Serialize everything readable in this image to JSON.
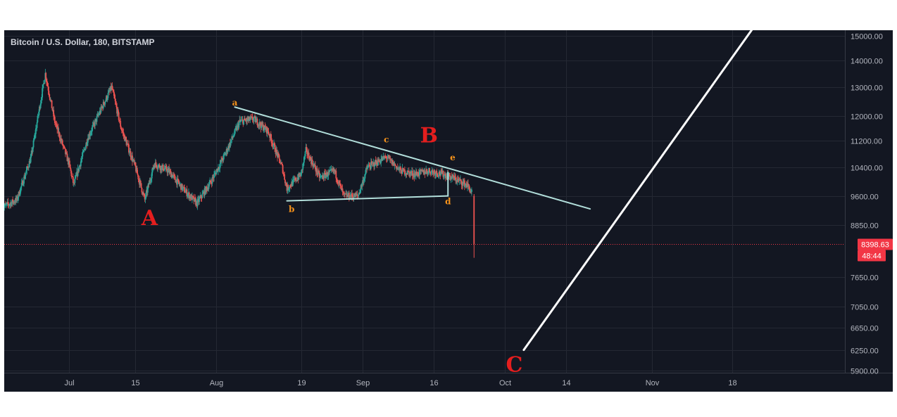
{
  "chart_title": "Bitcoin / U.S. Dollar, 180, BITSTAMP",
  "colors": {
    "background": "#131722",
    "up": "#26a69a",
    "down": "#ef5350",
    "trendline": "#b2dfdb",
    "projection": "#ffffff",
    "wave_small": "#f7931a",
    "wave_big": "#e41e1e",
    "price_tag": "#f23645"
  },
  "current_price_label": "8398.63",
  "countdown_label": "48:44",
  "chart_data": {
    "type": "candlestick",
    "symbol": "Bitcoin / U.S. Dollar",
    "interval": "180",
    "exchange": "BITSTAMP",
    "y_scale": "log",
    "ylim": [
      5800,
      15500
    ],
    "x_range": [
      "2019-06-17",
      "2019-11-30"
    ],
    "y_ticks": [
      "15000.00",
      "14000.00",
      "13000.00",
      "12000.00",
      "11200.00",
      "10400.00",
      "9600.00",
      "8850.00",
      "7650.00",
      "7050.00",
      "6650.00",
      "6250.00",
      "5900.00"
    ],
    "y_tick_values": [
      15000,
      14000,
      13000,
      12000,
      11200,
      10400,
      9600,
      8850,
      7650,
      7050,
      6650,
      6250,
      5900
    ],
    "x_ticks": [
      {
        "label": "Jul",
        "date": "2019-07-01"
      },
      {
        "label": "15",
        "date": "2019-07-15"
      },
      {
        "label": "Aug",
        "date": "2019-08-01"
      },
      {
        "label": "19",
        "date": "2019-08-19"
      },
      {
        "label": "Sep",
        "date": "2019-09-01"
      },
      {
        "label": "16",
        "date": "2019-09-16"
      },
      {
        "label": "Oct",
        "date": "2019-10-01"
      },
      {
        "label": "14",
        "date": "2019-10-14"
      },
      {
        "label": "Nov",
        "date": "2019-11-01"
      },
      {
        "label": "18",
        "date": "2019-11-18"
      }
    ],
    "price_path": [
      {
        "date": "2019-06-17",
        "price": 9300
      },
      {
        "date": "2019-06-20",
        "price": 9500
      },
      {
        "date": "2019-06-23",
        "price": 10700
      },
      {
        "date": "2019-06-26",
        "price": 13500
      },
      {
        "date": "2019-06-28",
        "price": 11800
      },
      {
        "date": "2019-07-01",
        "price": 10500
      },
      {
        "date": "2019-07-02",
        "price": 9900
      },
      {
        "date": "2019-07-05",
        "price": 11300
      },
      {
        "date": "2019-07-08",
        "price": 12300
      },
      {
        "date": "2019-07-10",
        "price": 13000
      },
      {
        "date": "2019-07-12",
        "price": 11600
      },
      {
        "date": "2019-07-15",
        "price": 10400
      },
      {
        "date": "2019-07-17",
        "price": 9500
      },
      {
        "date": "2019-07-19",
        "price": 10500
      },
      {
        "date": "2019-07-22",
        "price": 10300
      },
      {
        "date": "2019-07-25",
        "price": 9800
      },
      {
        "date": "2019-07-28",
        "price": 9400
      },
      {
        "date": "2019-07-31",
        "price": 10000
      },
      {
        "date": "2019-08-03",
        "price": 10800
      },
      {
        "date": "2019-08-06",
        "price": 11800
      },
      {
        "date": "2019-08-09",
        "price": 11900
      },
      {
        "date": "2019-08-12",
        "price": 11500
      },
      {
        "date": "2019-08-15",
        "price": 10400
      },
      {
        "date": "2019-08-16",
        "price": 9800
      },
      {
        "date": "2019-08-19",
        "price": 10200
      },
      {
        "date": "2019-08-20",
        "price": 10900
      },
      {
        "date": "2019-08-23",
        "price": 10100
      },
      {
        "date": "2019-08-26",
        "price": 10300
      },
      {
        "date": "2019-08-28",
        "price": 9600
      },
      {
        "date": "2019-08-31",
        "price": 9600
      },
      {
        "date": "2019-09-02",
        "price": 10400
      },
      {
        "date": "2019-09-06",
        "price": 10700
      },
      {
        "date": "2019-09-09",
        "price": 10300
      },
      {
        "date": "2019-09-12",
        "price": 10200
      },
      {
        "date": "2019-09-15",
        "price": 10300
      },
      {
        "date": "2019-09-18",
        "price": 10200
      },
      {
        "date": "2019-09-20",
        "price": 10100
      },
      {
        "date": "2019-09-23",
        "price": 9900
      },
      {
        "date": "2019-09-24",
        "price": 9700
      },
      {
        "date": "2019-09-24T12:00",
        "price": 8398.63
      }
    ],
    "last_price": 8398.63,
    "wave_labels": [
      {
        "text": "A",
        "size": "large",
        "date": "2019-07-18",
        "price": 8850
      },
      {
        "text": "a",
        "size": "small",
        "date": "2019-08-05",
        "price": 12350
      },
      {
        "text": "b",
        "size": "small",
        "date": "2019-08-17",
        "price": 9180
      },
      {
        "text": "c",
        "size": "small",
        "date": "2019-09-06",
        "price": 11150
      },
      {
        "text": "B",
        "size": "large",
        "date": "2019-09-15",
        "price": 11150
      },
      {
        "text": "e",
        "size": "small",
        "date": "2019-09-20",
        "price": 10600
      },
      {
        "text": "d",
        "size": "small",
        "date": "2019-09-19",
        "price": 9380
      },
      {
        "text": "C",
        "size": "large",
        "date": "2019-10-03",
        "price": 5880
      }
    ],
    "trendlines": [
      {
        "name": "upper",
        "from": {
          "date": "2019-08-05",
          "price": 12300
        },
        "to": {
          "date": "2019-10-19",
          "price": 9260
        }
      },
      {
        "name": "lower",
        "from": {
          "date": "2019-08-16",
          "price": 9470
        },
        "to": {
          "date": "2019-09-19",
          "price": 9600
        }
      },
      {
        "name": "d-e",
        "from": {
          "date": "2019-09-19",
          "price": 9600
        },
        "to": {
          "date": "2019-09-19",
          "price": 10250
        }
      },
      {
        "name": "projection",
        "from": {
          "date": "2019-10-05",
          "price": 6250
        },
        "to": {
          "date": "2019-11-23",
          "price": 15500
        }
      }
    ]
  }
}
